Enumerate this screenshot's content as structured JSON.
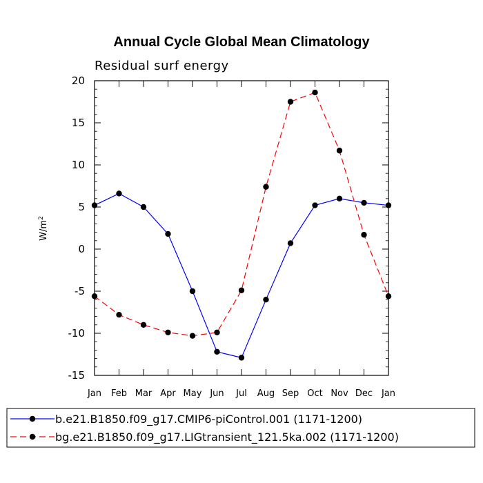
{
  "chart_data": {
    "type": "line",
    "title": "Annual Cycle Global Mean Climatology",
    "subtitle": "Residual surf energy",
    "xlabel": "",
    "ylabel": "W/m",
    "ylabel_superscript": "2",
    "categories": [
      "Jan",
      "Feb",
      "Mar",
      "Apr",
      "May",
      "Jun",
      "Jul",
      "Aug",
      "Sep",
      "Oct",
      "Nov",
      "Dec",
      "Jan"
    ],
    "ylim": [
      -15,
      20
    ],
    "yticks": [
      "-15",
      "-10",
      "-5",
      "0",
      "5",
      "10",
      "15",
      "20"
    ],
    "grid": false,
    "legend_position": "bottom",
    "series": [
      {
        "name": "b.e21.B1850.f09_g17.CMIP6-piControl.001 (1171-1200)",
        "color": "#0000ff",
        "dash": "solid",
        "values": [
          5.2,
          6.6,
          5.0,
          1.8,
          -5.0,
          -12.2,
          -12.9,
          -6.0,
          0.7,
          5.2,
          6.0,
          5.5,
          5.2
        ]
      },
      {
        "name": "bg.e21.B1850.f09_g17.LIGtransient_121.5ka.002 (1171-1200)",
        "color": "#ff0000",
        "dash": "dashed",
        "values": [
          -5.6,
          -7.8,
          -9.0,
          -9.9,
          -10.3,
          -9.9,
          -4.9,
          7.4,
          17.5,
          18.6,
          11.7,
          1.7,
          -5.6
        ]
      }
    ]
  }
}
